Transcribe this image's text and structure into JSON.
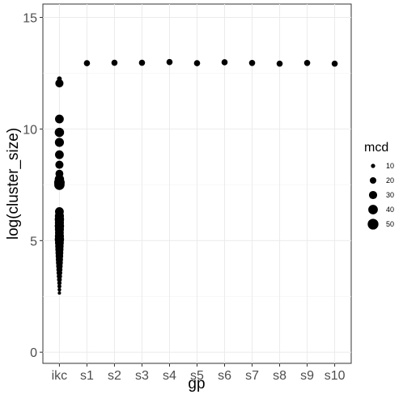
{
  "chart_data": {
    "type": "scatter",
    "title": "",
    "xlabel": "gp",
    "ylabel": "log(cluster_size)",
    "categories": [
      "ikc",
      "s1",
      "s2",
      "s3",
      "s4",
      "s5",
      "s6",
      "s7",
      "s8",
      "s9",
      "s10"
    ],
    "yticks": [
      0,
      5,
      10,
      15
    ],
    "ylim": [
      -0.5,
      15.6
    ],
    "grid": true,
    "legend": {
      "title": "mcd",
      "position": "right",
      "entries": [
        {
          "label": "10",
          "size": 10
        },
        {
          "label": "20",
          "size": 20
        },
        {
          "label": "30",
          "size": 30
        },
        {
          "label": "40",
          "size": 40
        },
        {
          "label": "50",
          "size": 50
        }
      ]
    },
    "size_range": [
      5,
      55
    ],
    "point_color": "#000000",
    "points": [
      {
        "x": "ikc",
        "y": 12.25,
        "size": 12
      },
      {
        "x": "ikc",
        "y": 12.05,
        "size": 30
      },
      {
        "x": "ikc",
        "y": 10.45,
        "size": 34
      },
      {
        "x": "ikc",
        "y": 9.85,
        "size": 38
      },
      {
        "x": "ikc",
        "y": 9.4,
        "size": 36
      },
      {
        "x": "ikc",
        "y": 8.85,
        "size": 34
      },
      {
        "x": "ikc",
        "y": 8.4,
        "size": 30
      },
      {
        "x": "ikc",
        "y": 8.0,
        "size": 28
      },
      {
        "x": "ikc",
        "y": 7.75,
        "size": 38
      },
      {
        "x": "ikc",
        "y": 7.6,
        "size": 48
      },
      {
        "x": "ikc",
        "y": 7.5,
        "size": 46
      },
      {
        "x": "ikc",
        "y": 6.3,
        "size": 34
      },
      {
        "x": "ikc",
        "y": 6.1,
        "size": 36
      },
      {
        "x": "ikc",
        "y": 5.95,
        "size": 38
      },
      {
        "x": "ikc",
        "y": 5.8,
        "size": 36
      },
      {
        "x": "ikc",
        "y": 5.65,
        "size": 38
      },
      {
        "x": "ikc",
        "y": 5.5,
        "size": 36
      },
      {
        "x": "ikc",
        "y": 5.35,
        "size": 34
      },
      {
        "x": "ikc",
        "y": 5.2,
        "size": 36
      },
      {
        "x": "ikc",
        "y": 5.05,
        "size": 38
      },
      {
        "x": "ikc",
        "y": 4.9,
        "size": 34
      },
      {
        "x": "ikc",
        "y": 4.75,
        "size": 32
      },
      {
        "x": "ikc",
        "y": 4.6,
        "size": 30
      },
      {
        "x": "ikc",
        "y": 4.45,
        "size": 28
      },
      {
        "x": "ikc",
        "y": 4.3,
        "size": 26
      },
      {
        "x": "ikc",
        "y": 4.15,
        "size": 24
      },
      {
        "x": "ikc",
        "y": 4.0,
        "size": 22
      },
      {
        "x": "ikc",
        "y": 3.85,
        "size": 20
      },
      {
        "x": "ikc",
        "y": 3.7,
        "size": 18
      },
      {
        "x": "ikc",
        "y": 3.55,
        "size": 16
      },
      {
        "x": "ikc",
        "y": 3.4,
        "size": 14
      },
      {
        "x": "ikc",
        "y": 3.25,
        "size": 12
      },
      {
        "x": "ikc",
        "y": 3.1,
        "size": 10
      },
      {
        "x": "ikc",
        "y": 2.95,
        "size": 9
      },
      {
        "x": "ikc",
        "y": 2.8,
        "size": 8
      },
      {
        "x": "ikc",
        "y": 2.65,
        "size": 7
      },
      {
        "x": "s1",
        "y": 12.95,
        "size": 18
      },
      {
        "x": "s2",
        "y": 12.97,
        "size": 18
      },
      {
        "x": "s3",
        "y": 12.97,
        "size": 18
      },
      {
        "x": "s4",
        "y": 13.0,
        "size": 18
      },
      {
        "x": "s5",
        "y": 12.95,
        "size": 18
      },
      {
        "x": "s6",
        "y": 12.99,
        "size": 18
      },
      {
        "x": "s7",
        "y": 12.96,
        "size": 18
      },
      {
        "x": "s8",
        "y": 12.93,
        "size": 18
      },
      {
        "x": "s9",
        "y": 12.96,
        "size": 18
      },
      {
        "x": "s10",
        "y": 12.93,
        "size": 18
      }
    ]
  }
}
